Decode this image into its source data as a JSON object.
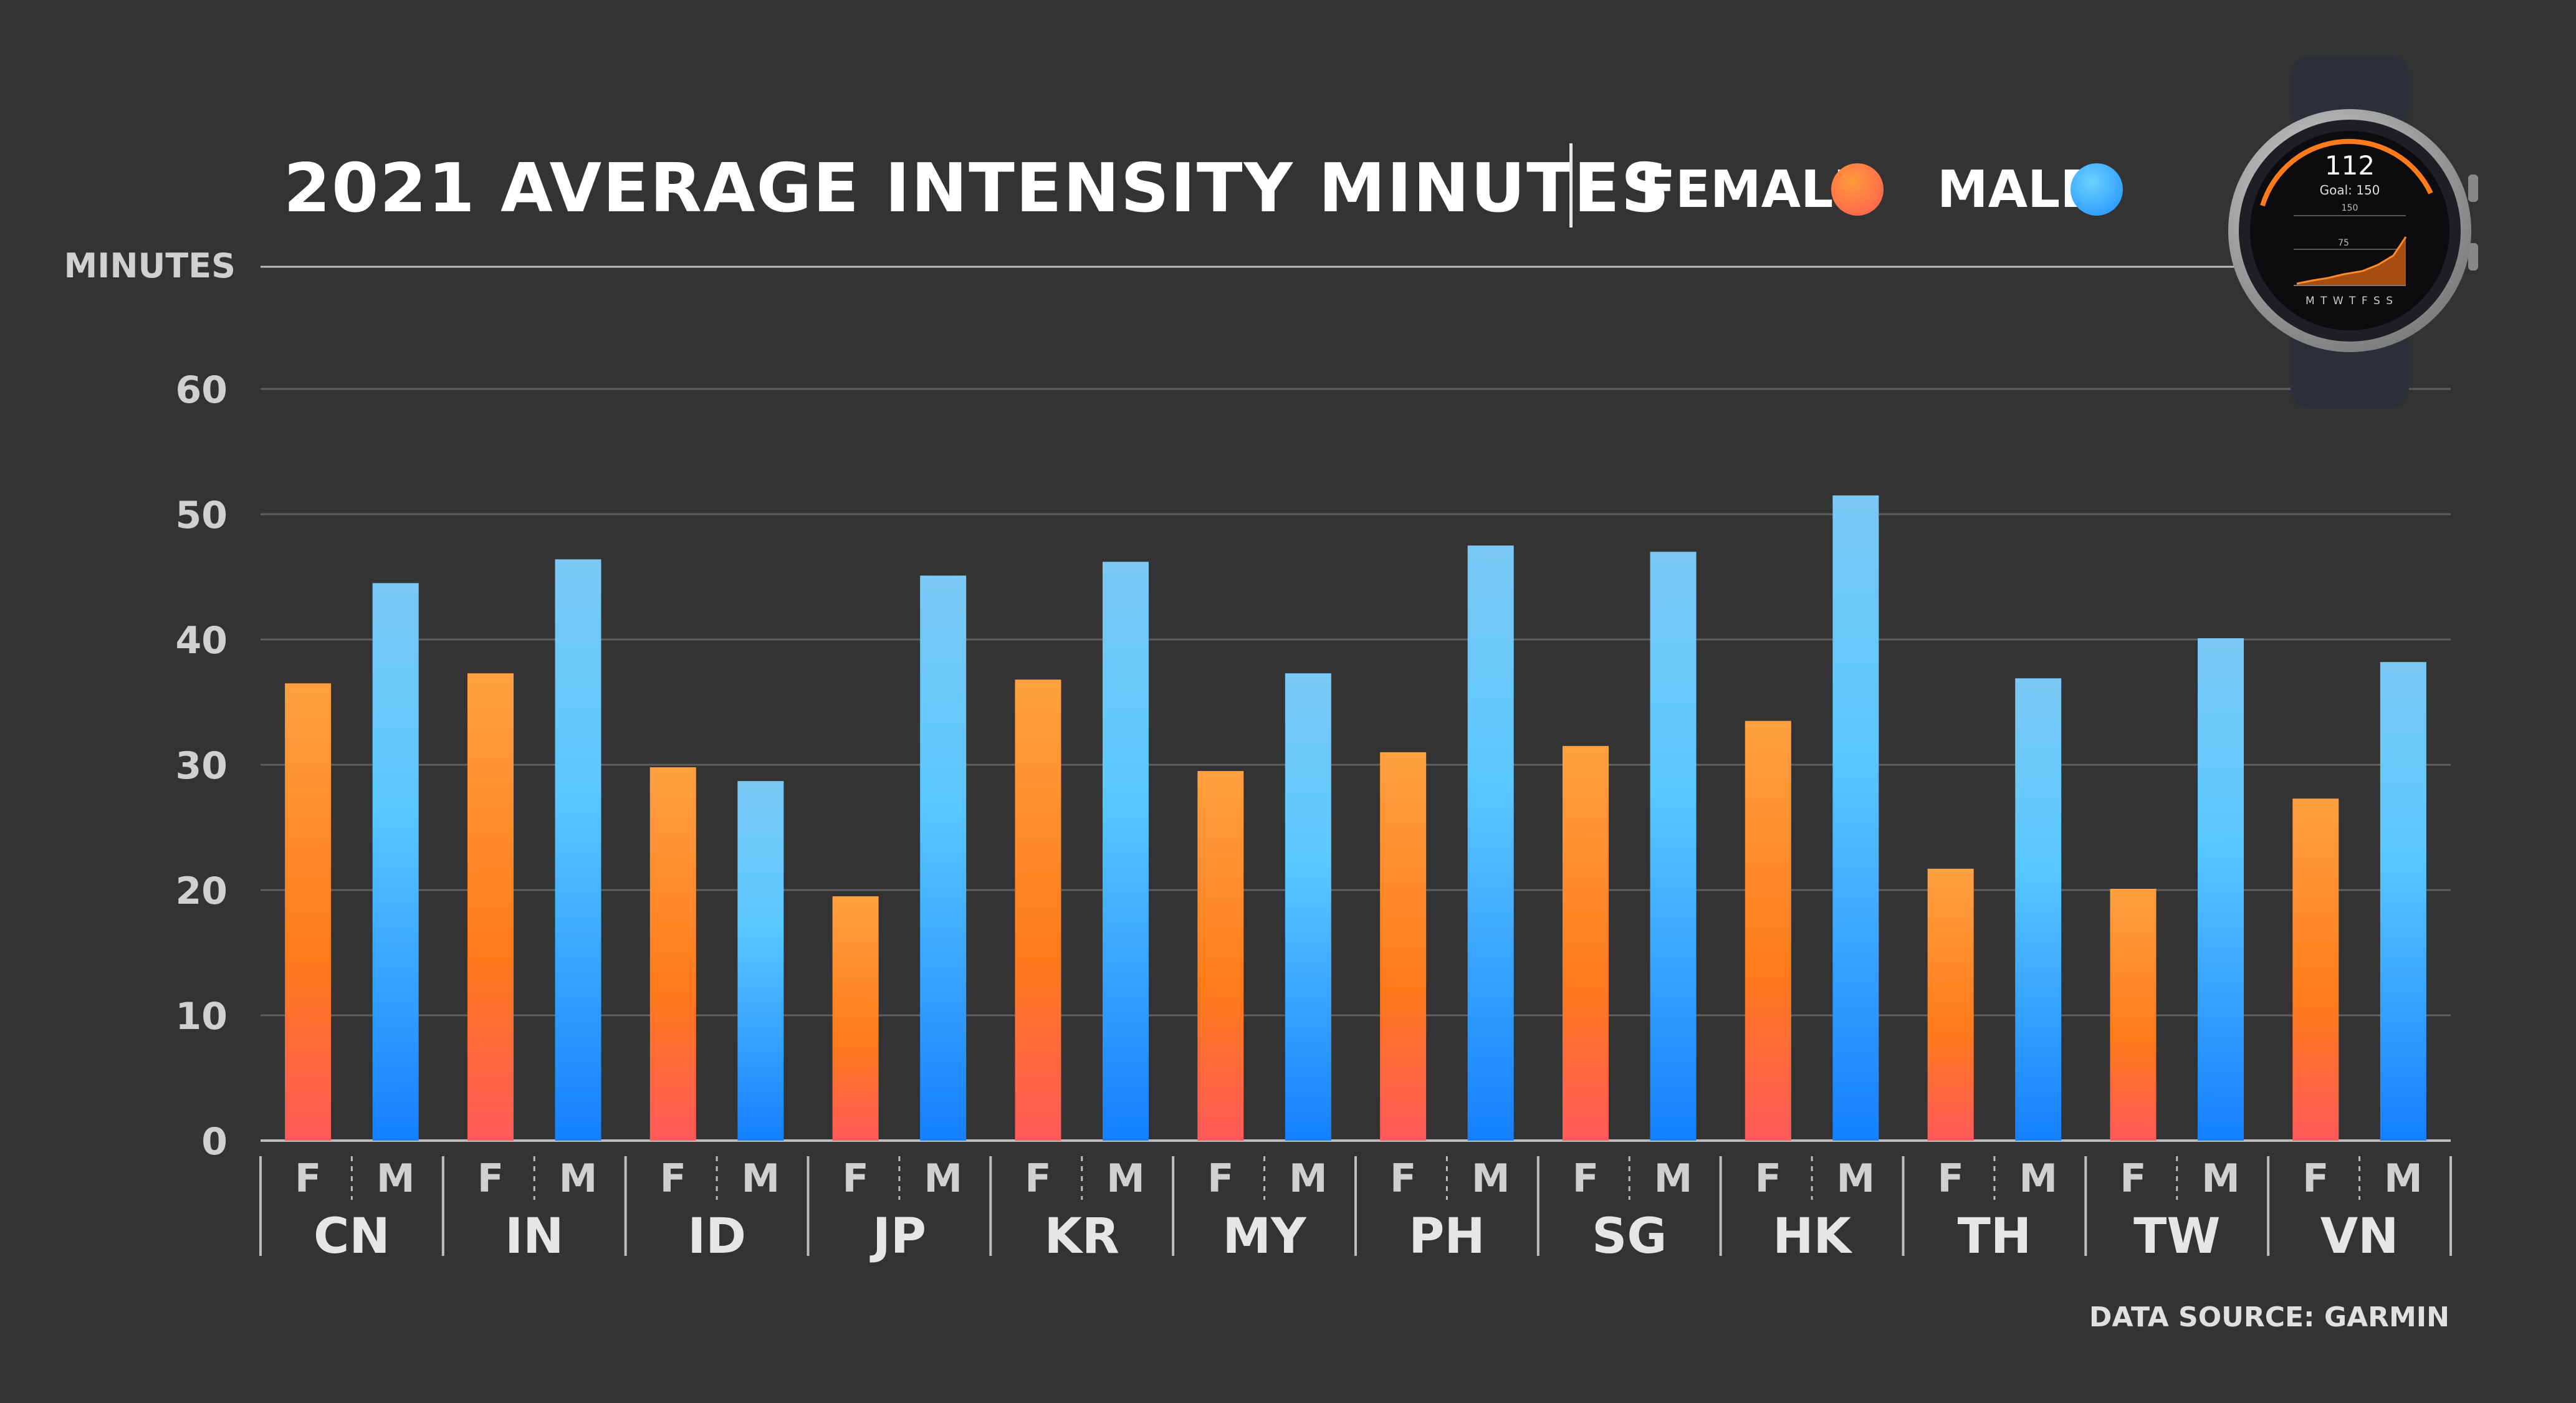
{
  "title": "2021 AVERAGE INTENSITY MINUTES",
  "legend": {
    "female_label": "FEMALE",
    "male_label": "MALE"
  },
  "source": "DATA SOURCE: GARMIN",
  "watch": {
    "value": "112",
    "goal": "Goal: 150",
    "scale_top": "150",
    "scale_mid": "75",
    "days": "M T W T F S S"
  },
  "colors": {
    "background": "#333333",
    "female_top": "#ffa040",
    "female_mid": "#ff7a1a",
    "female_bottom": "#ff5a5a",
    "male_top": "#7ac8f5",
    "male_mid": "#5ac8ff",
    "male_bottom": "#1580ff"
  },
  "chart_data": {
    "type": "bar",
    "title": "2021 AVERAGE INTENSITY MINUTES",
    "ylabel": "MINUTES",
    "xlabel": "",
    "ylim": [
      0,
      70
    ],
    "yticks": [
      0,
      10,
      20,
      30,
      40,
      50,
      60
    ],
    "grid": true,
    "legend_position": "top-right",
    "sub_labels": [
      "F",
      "M"
    ],
    "categories": [
      "CN",
      "IN",
      "ID",
      "JP",
      "KR",
      "MY",
      "PH",
      "SG",
      "HK",
      "TH",
      "TW",
      "VN"
    ],
    "series": [
      {
        "name": "FEMALE",
        "values": [
          36.5,
          37.3,
          29.8,
          19.5,
          36.8,
          29.5,
          31.0,
          31.5,
          33.5,
          21.7,
          20.1,
          27.3
        ]
      },
      {
        "name": "MALE",
        "values": [
          44.5,
          46.4,
          28.7,
          45.1,
          46.2,
          37.3,
          47.5,
          47.0,
          51.5,
          36.9,
          40.1,
          38.2
        ]
      }
    ]
  }
}
